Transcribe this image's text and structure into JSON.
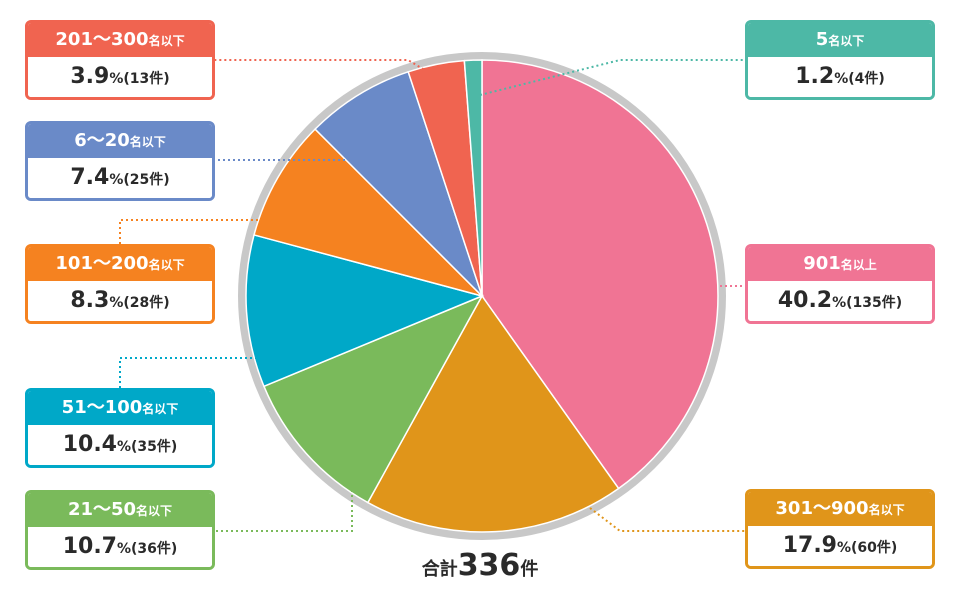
{
  "chart_data": {
    "type": "pie",
    "title": "",
    "total": {
      "label": "合計",
      "value": "336",
      "unit": "件"
    },
    "slices": [
      {
        "label": "901",
        "unit": "名以上",
        "percent": "40.2",
        "count": "135",
        "value": 135,
        "color": "#f07494"
      },
      {
        "label": "301～900",
        "unit": "名以下",
        "percent": "17.9",
        "count": "60",
        "value": 60,
        "color": "#e0951a"
      },
      {
        "label": "21～50",
        "unit": "名以下",
        "percent": "10.7",
        "count": "36",
        "value": 36,
        "color": "#7aba5b"
      },
      {
        "label": "51～100",
        "unit": "名以下",
        "percent": "10.4",
        "count": "35",
        "value": 35,
        "color": "#00a8c8"
      },
      {
        "label": "101～200",
        "unit": "名以下",
        "percent": "8.3",
        "count": "28",
        "value": 28,
        "color": "#f58220"
      },
      {
        "label": "6～20",
        "unit": "名以下",
        "percent": "7.4",
        "count": "25",
        "value": 25,
        "color": "#6a8ac8"
      },
      {
        "label": "201～300",
        "unit": "名以下",
        "percent": "3.9",
        "count": "13",
        "value": 13,
        "color": "#f06450"
      },
      {
        "label": "5",
        "unit": "名以下",
        "percent": "1.2",
        "count": "4",
        "value": 4,
        "color": "#4db8a6"
      }
    ],
    "percent_symbol": "%",
    "count_open": "(",
    "count_close": "件)",
    "ring_color": "#c8c8c8"
  }
}
